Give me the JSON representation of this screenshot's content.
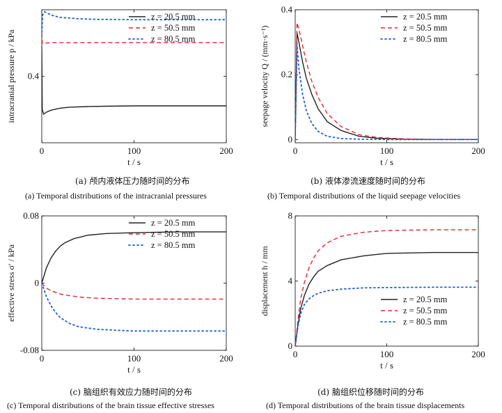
{
  "chart_data": [
    {
      "id": "a",
      "type": "line",
      "ylabel": "intracranial pressure p / kPa",
      "xlabel": "t / s",
      "xlim": [
        0,
        200
      ],
      "ylim": [
        0.2,
        0.6
      ],
      "xticks": [
        0,
        100,
        200
      ],
      "yticks": [
        {
          "v": 0.4,
          "label": "0.4"
        }
      ],
      "legend": "top-right",
      "caption_zh": "(a) 颅内液体压力随时间的分布",
      "caption_en": "(a) Temporal distributions of the intracranial pressures",
      "series": [
        {
          "name": "z = 20.5 mm",
          "color": "#222222",
          "dash": "solid",
          "x": [
            0,
            0.5,
            2,
            5,
            10,
            20,
            30,
            50,
            70,
            100,
            150,
            200
          ],
          "y": [
            0.49,
            0.3,
            0.286,
            0.292,
            0.298,
            0.304,
            0.307,
            0.309,
            0.31,
            0.311,
            0.311,
            0.311
          ]
        },
        {
          "name": "z = 50.5 mm",
          "color": "#e3262d",
          "dash": "6,4",
          "x": [
            0,
            0.5,
            2,
            5,
            10,
            20,
            50,
            100,
            150,
            200
          ],
          "y": [
            0.53,
            0.498,
            0.499,
            0.5,
            0.501,
            0.501,
            0.501,
            0.501,
            0.501,
            0.501
          ]
        },
        {
          "name": "z = 80.5 mm",
          "color": "#1c5fd1",
          "dash": "2,4",
          "x": [
            0,
            0.5,
            1,
            3,
            6,
            10,
            20,
            40,
            60,
            100,
            150,
            200
          ],
          "y": [
            0.52,
            0.56,
            0.585,
            0.594,
            0.59,
            0.584,
            0.577,
            0.573,
            0.571,
            0.57,
            0.57,
            0.57
          ]
        }
      ]
    },
    {
      "id": "b",
      "type": "line",
      "ylabel": "seepage velocity Q / (mm·s⁻¹)",
      "xlabel": "t / s",
      "xlim": [
        0,
        200
      ],
      "ylim": [
        -0.01,
        0.4
      ],
      "xticks": [
        0,
        100,
        200
      ],
      "yticks": [
        {
          "v": 0,
          "label": "0"
        },
        {
          "v": 0.2,
          "label": "0.2"
        },
        {
          "v": 0.4,
          "label": "0.4"
        }
      ],
      "legend": "top-right",
      "caption_zh": "(b) 液体渗流速度随时间的分布",
      "caption_en": "(b) Temporal distributions of the liquid seepage velocities",
      "series": [
        {
          "name": "z = 20.5 mm",
          "color": "#222222",
          "dash": "solid",
          "x": [
            0,
            1,
            2,
            4,
            8,
            12,
            18,
            25,
            35,
            50,
            70,
            90,
            120,
            160,
            200
          ],
          "y": [
            0,
            0.16,
            0.33,
            0.3,
            0.24,
            0.19,
            0.14,
            0.095,
            0.055,
            0.028,
            0.01,
            0.004,
            0.001,
            0,
            0
          ]
        },
        {
          "name": "z = 50.5 mm",
          "color": "#e3262d",
          "dash": "6,4",
          "x": [
            0,
            1,
            2,
            4,
            8,
            12,
            18,
            25,
            35,
            50,
            70,
            90,
            120,
            160,
            200
          ],
          "y": [
            0,
            0.18,
            0.36,
            0.34,
            0.29,
            0.24,
            0.18,
            0.13,
            0.08,
            0.04,
            0.015,
            0.006,
            0.002,
            0,
            0
          ]
        },
        {
          "name": "z = 80.5 mm",
          "color": "#1c5fd1",
          "dash": "2,4",
          "x": [
            0,
            1,
            2,
            4,
            8,
            12,
            18,
            25,
            35,
            50,
            70,
            100,
            150,
            200
          ],
          "y": [
            0,
            0.15,
            0.29,
            0.22,
            0.14,
            0.09,
            0.05,
            0.025,
            0.01,
            0.003,
            0.001,
            0,
            0,
            0
          ]
        }
      ]
    },
    {
      "id": "c",
      "type": "line",
      "ylabel": "effective stress σ′ / kPa",
      "xlabel": "t / s",
      "xlim": [
        0,
        200
      ],
      "ylim": [
        -0.08,
        0.08
      ],
      "xticks": [
        0,
        100,
        200
      ],
      "yticks": [
        {
          "v": -0.08,
          "label": "-0.08"
        },
        {
          "v": 0,
          "label": "0"
        },
        {
          "v": 0.08,
          "label": "0.08"
        }
      ],
      "legend": "top-right",
      "caption_zh": "(c) 脑组织有效应力随时间的分布",
      "caption_en": "(c) Temporal distributions of the brain tissue effective stresses",
      "series": [
        {
          "name": "z = 20.5 mm",
          "color": "#222222",
          "dash": "solid",
          "x": [
            0,
            5,
            10,
            15,
            20,
            25,
            35,
            50,
            70,
            100,
            150,
            200
          ],
          "y": [
            0,
            0.018,
            0.03,
            0.038,
            0.044,
            0.048,
            0.053,
            0.057,
            0.059,
            0.06,
            0.061,
            0.061
          ]
        },
        {
          "name": "z = 50.5 mm",
          "color": "#e3262d",
          "dash": "6,4",
          "x": [
            0,
            5,
            10,
            20,
            30,
            45,
            60,
            80,
            100,
            150,
            200
          ],
          "y": [
            0,
            -0.006,
            -0.009,
            -0.013,
            -0.015,
            -0.017,
            -0.018,
            -0.0185,
            -0.019,
            -0.019,
            -0.019
          ]
        },
        {
          "name": "z = 80.5 mm",
          "color": "#1c5fd1",
          "dash": "2,4",
          "x": [
            0,
            5,
            10,
            15,
            20,
            30,
            40,
            60,
            80,
            100,
            150,
            200
          ],
          "y": [
            0,
            -0.016,
            -0.027,
            -0.035,
            -0.041,
            -0.048,
            -0.052,
            -0.055,
            -0.056,
            -0.057,
            -0.057,
            -0.057
          ]
        }
      ]
    },
    {
      "id": "d",
      "type": "line",
      "ylabel": "displacement h / mm",
      "xlabel": "t / s",
      "xlim": [
        0,
        200
      ],
      "ylim": [
        0,
        8
      ],
      "xticks": [
        0,
        100,
        200
      ],
      "yticks": [
        {
          "v": 0,
          "label": "0"
        },
        {
          "v": 4,
          "label": "4"
        },
        {
          "v": 8,
          "label": "8"
        }
      ],
      "legend": "bottom-right",
      "caption_zh": "(d) 脑组织位移随时间的分布",
      "caption_en": "(d) Temporal distributions of the brain tissue displacements",
      "series": [
        {
          "name": "z = 20.5 mm",
          "color": "#222222",
          "dash": "solid",
          "x": [
            0,
            3,
            6,
            10,
            15,
            20,
            25,
            35,
            50,
            75,
            100,
            150,
            200
          ],
          "y": [
            0,
            1.3,
            2.3,
            3.1,
            3.8,
            4.25,
            4.6,
            4.95,
            5.3,
            5.55,
            5.7,
            5.75,
            5.75
          ]
        },
        {
          "name": "z = 50.5 mm",
          "color": "#e3262d",
          "dash": "6,4",
          "x": [
            0,
            3,
            6,
            10,
            15,
            20,
            25,
            35,
            50,
            75,
            100,
            150,
            200
          ],
          "y": [
            0,
            1.6,
            2.9,
            3.9,
            4.8,
            5.4,
            5.85,
            6.35,
            6.75,
            7.0,
            7.1,
            7.15,
            7.15
          ]
        },
        {
          "name": "z = 80.5 mm",
          "color": "#1c5fd1",
          "dash": "2,4",
          "x": [
            0,
            3,
            6,
            10,
            15,
            20,
            25,
            35,
            50,
            75,
            100,
            150,
            200
          ],
          "y": [
            0,
            1.2,
            2.0,
            2.55,
            2.9,
            3.1,
            3.25,
            3.4,
            3.5,
            3.58,
            3.6,
            3.62,
            3.62
          ]
        }
      ]
    }
  ]
}
